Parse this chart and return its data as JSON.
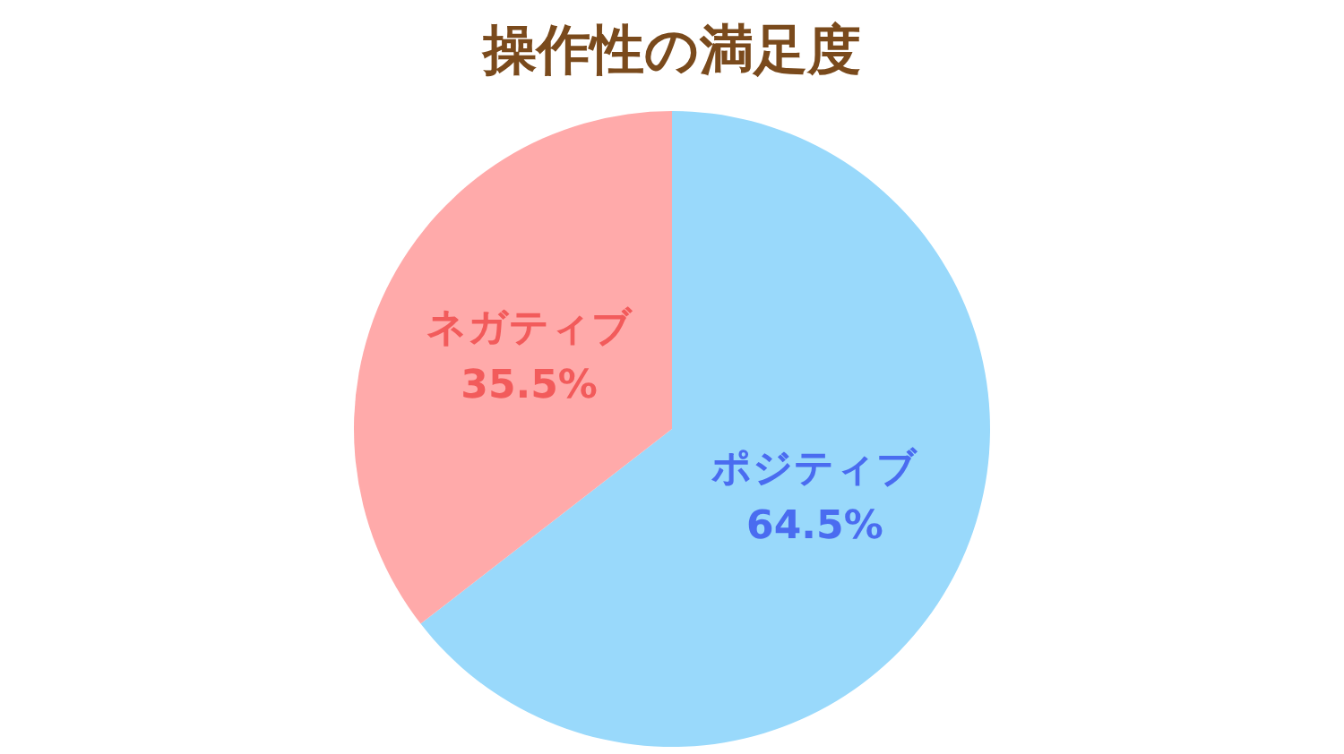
{
  "chart_data": {
    "type": "pie",
    "title": "操作性の満足度",
    "categories": [
      "ポジティブ",
      "ネガティブ"
    ],
    "values": [
      64.5,
      35.5
    ],
    "value_labels": [
      "64.5%",
      "35.5%"
    ],
    "colors": [
      "#99d9fb",
      "#ffaaaa"
    ],
    "legend": false
  }
}
